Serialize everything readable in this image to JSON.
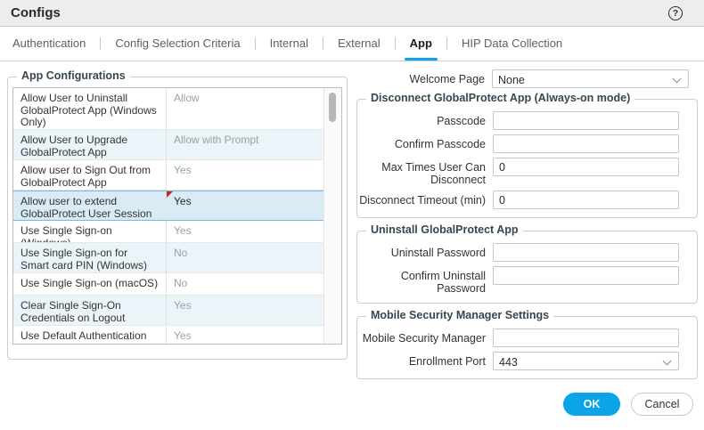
{
  "window": {
    "title": "Configs",
    "help_icon": "circled-question-mark"
  },
  "tabs": [
    {
      "label": "Authentication",
      "active": false
    },
    {
      "label": "Config Selection Criteria",
      "active": false
    },
    {
      "label": "Internal",
      "active": false
    },
    {
      "label": "External",
      "active": false
    },
    {
      "label": "App",
      "active": true
    },
    {
      "label": "HIP Data Collection",
      "active": false
    }
  ],
  "app_configurations": {
    "legend": "App Configurations",
    "rows": [
      {
        "setting": "Allow User to Uninstall GlobalProtect App (Windows Only)",
        "value": "Allow",
        "state": "default"
      },
      {
        "setting": "Allow User to Upgrade GlobalProtect App",
        "value": "Allow with Prompt",
        "state": "default"
      },
      {
        "setting": "Allow user to Sign Out from GlobalProtect App",
        "value": "Yes",
        "state": "default"
      },
      {
        "setting": "Allow user to extend GlobalProtect User Session",
        "value": "Yes",
        "state": "selected-modified"
      },
      {
        "setting": "Use Single Sign-on (Windows)",
        "value": "Yes",
        "state": "default"
      },
      {
        "setting": "Use Single Sign-on for Smart card PIN (Windows)",
        "value": "No",
        "state": "default"
      },
      {
        "setting": "Use Single Sign-on (macOS)",
        "value": "No",
        "state": "default"
      },
      {
        "setting": "Clear Single Sign-On Credentials on Logout (Windows Only)",
        "value": "Yes",
        "state": "default"
      },
      {
        "setting": "Use Default Authentication on Kerberos Authentication Failure",
        "value": "Yes",
        "state": "default"
      }
    ]
  },
  "settings": {
    "welcome_page": {
      "label": "Welcome Page",
      "value": "None",
      "control": "select"
    },
    "disconnect": {
      "legend": "Disconnect GlobalProtect App (Always-on mode)",
      "fields": [
        {
          "label": "Passcode",
          "value": "",
          "control": "text"
        },
        {
          "label": "Confirm Passcode",
          "value": "",
          "control": "text"
        },
        {
          "label": "Max Times User Can Disconnect",
          "value": "0",
          "control": "text"
        },
        {
          "label": "Disconnect Timeout (min)",
          "value": "0",
          "control": "text"
        }
      ]
    },
    "uninstall": {
      "legend": "Uninstall GlobalProtect App",
      "fields": [
        {
          "label": "Uninstall Password",
          "value": "",
          "control": "text"
        },
        {
          "label": "Confirm Uninstall Password",
          "value": "",
          "control": "text"
        }
      ]
    },
    "mobile": {
      "legend": "Mobile Security Manager Settings",
      "fields": [
        {
          "label": "Mobile Security Manager",
          "value": "",
          "control": "text"
        },
        {
          "label": "Enrollment Port",
          "value": "443",
          "control": "select"
        }
      ]
    }
  },
  "footer": {
    "ok_label": "OK",
    "cancel_label": "Cancel"
  },
  "colors": {
    "accent_blue": "#0ba4e8",
    "selected_row_bg": "#d9ecf6",
    "selected_row_border": "#7cb9d9",
    "modified_marker": "#c22a1c",
    "header_bg": "#ededed"
  }
}
